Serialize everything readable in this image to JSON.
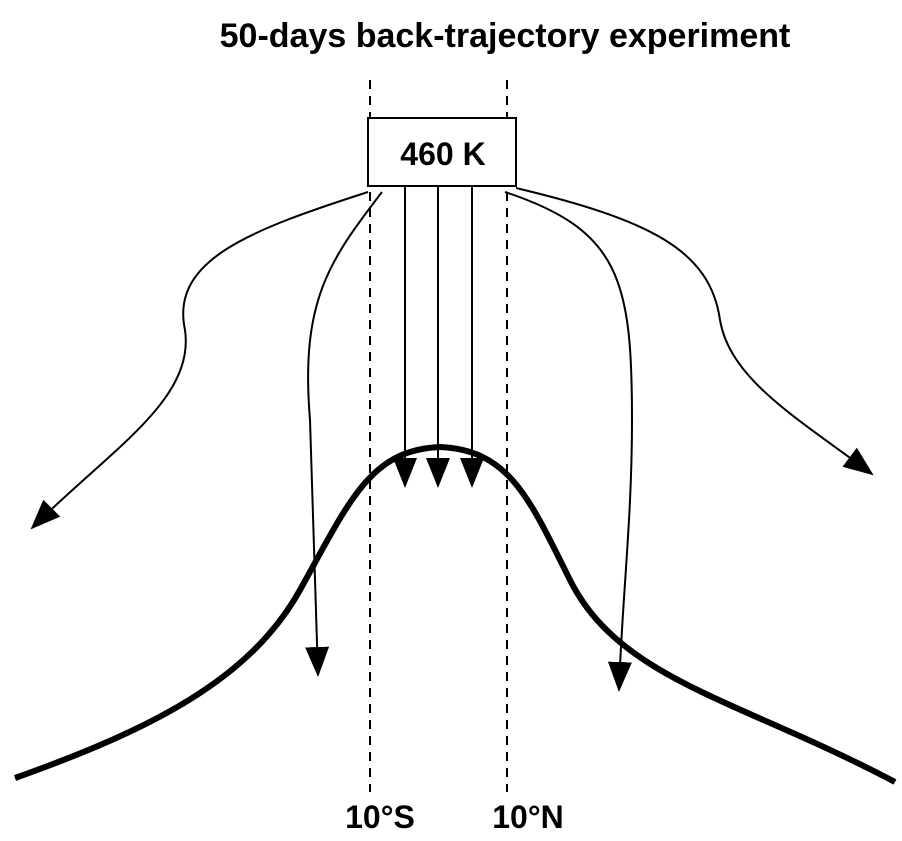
{
  "title": "50-days back-trajectory experiment",
  "box": {
    "label": "460 K"
  },
  "latitudes": [
    "10°S",
    "10°N"
  ]
}
